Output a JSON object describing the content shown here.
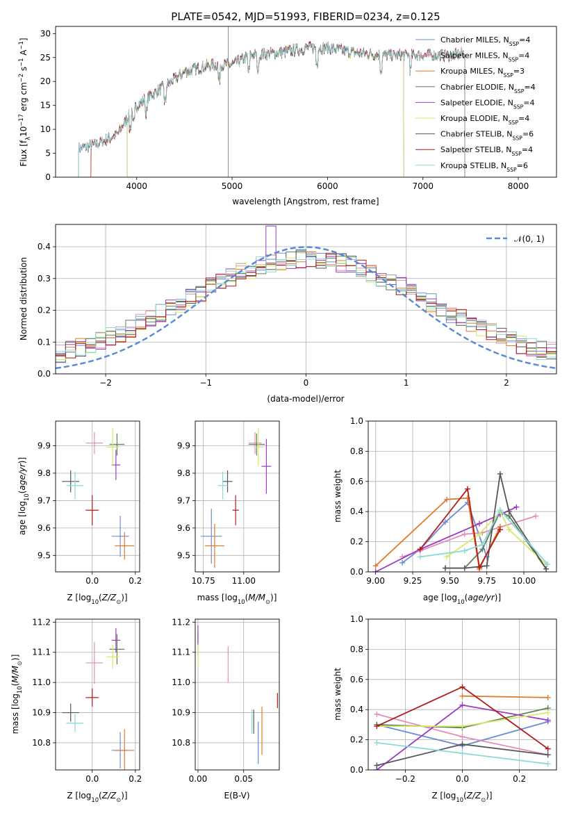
{
  "colors": {
    "Chabrier MILES": "#6b8bd6",
    "Salpeter MILES": "#e88ab8",
    "Kroupa MILES": "#e07b2a",
    "Chabrier ELODIE": "#5e7f5e",
    "Salpeter ELODIE": "#9a3cc0",
    "Kroupa ELODIE": "#d8e86a",
    "Chabrier STELIB": "#555555",
    "Salpeter STELIB": "#b01c1c",
    "Kroupa STELIB": "#8ad8d8",
    "gauss": "#5a8ad6",
    "grid": "#b0b0b0"
  },
  "chart_data": [
    {
      "type": "line",
      "title": "PLATE=0542, MJD=51993, FIBERID=0234, z=0.125",
      "xlabel": "wavelength [Angstrom, rest frame]",
      "ylabel": "Flux [f_λ 10^-17 erg cm^-2 s^-1 A^-1]",
      "xlim": [
        3150,
        8400
      ],
      "ylim": [
        0,
        31.5
      ],
      "xticks": [
        "4000",
        "5000",
        "6000",
        "7000",
        "8000"
      ],
      "yticks": [
        "0",
        "5",
        "10",
        "15",
        "20",
        "25",
        "30"
      ],
      "grid": false,
      "legend": "upper-right",
      "observed_range": [
        3390,
        7470
      ],
      "continuum": [
        [
          3400,
          6.0
        ],
        [
          3600,
          7.0
        ],
        [
          3800,
          9.0
        ],
        [
          3950,
          14.0
        ],
        [
          4100,
          16.5
        ],
        [
          4300,
          19.0
        ],
        [
          4500,
          22.0
        ],
        [
          4800,
          23.5
        ],
        [
          5000,
          23.5
        ],
        [
          5200,
          25.5
        ],
        [
          5500,
          26.0
        ],
        [
          5800,
          27.0
        ],
        [
          6000,
          27.0
        ],
        [
          6300,
          26.0
        ],
        [
          6600,
          25.5
        ],
        [
          7000,
          25.5
        ],
        [
          7300,
          25.5
        ],
        [
          7450,
          26.0
        ]
      ],
      "series": [
        {
          "name": "Chabrier MILES",
          "nssp": "4",
          "range": [
            3390,
            7440
          ]
        },
        {
          "name": "Salpeter MILES",
          "nssp": "4",
          "range": [
            3390,
            7440
          ]
        },
        {
          "name": "Kroupa MILES",
          "nssp": "3",
          "range": [
            3520,
            7440
          ]
        },
        {
          "name": "Chabrier ELODIE",
          "nssp": "4",
          "range": [
            3900,
            6800
          ]
        },
        {
          "name": "Salpeter ELODIE",
          "nssp": "4",
          "range": [
            3900,
            6800
          ]
        },
        {
          "name": "Kroupa ELODIE",
          "nssp": "4",
          "range": [
            3900,
            6800
          ]
        },
        {
          "name": "Chabrier STELIB",
          "nssp": "6",
          "range": [
            3390,
            7440
          ]
        },
        {
          "name": "Salpeter STELIB",
          "nssp": "4",
          "range": [
            3520,
            7440
          ]
        },
        {
          "name": "Kroupa STELIB",
          "nssp": "6",
          "range": [
            3390,
            7440
          ]
        }
      ]
    },
    {
      "type": "histogram",
      "xlabel": "(data-model)/error",
      "ylabel": "Normed distribution",
      "xlim": [
        -2.5,
        2.5
      ],
      "ylim": [
        0,
        0.47
      ],
      "xticks": [
        "−2",
        "−1",
        "0",
        "1",
        "2"
      ],
      "yticks": [
        "0.0",
        "0.1",
        "0.2",
        "0.3",
        "0.4"
      ],
      "grid": true,
      "legend": "upper-right",
      "legend_label": "𝒩(0, 1)",
      "bin_edges": [
        -2.5,
        2.5
      ],
      "bin_width": 0.1,
      "peak_spike": {
        "x": -0.35,
        "y": 0.465
      }
    },
    {
      "type": "scatter",
      "xlabel": "Z [log10(Z/Z⊙)]",
      "ylabel": "age  [log10(age/yr)]",
      "xlim": [
        -0.17,
        0.22
      ],
      "ylim": [
        9.44,
        9.99
      ],
      "xticks": [
        "0.0",
        "0.2"
      ],
      "yticks": [
        "9.5",
        "9.6",
        "9.7",
        "9.8",
        "9.9"
      ],
      "grid": true,
      "points": [
        {
          "series": "Chabrier MILES",
          "x": 0.13,
          "y": 9.57,
          "xerr": 0.04,
          "yerr": 0.075
        },
        {
          "series": "Salpeter MILES",
          "x": 0.01,
          "y": 9.91,
          "xerr": 0.04,
          "yerr": 0.04
        },
        {
          "series": "Kroupa MILES",
          "x": 0.15,
          "y": 9.535,
          "xerr": 0.045,
          "yerr": 0.05
        },
        {
          "series": "Chabrier ELODIE",
          "x": 0.115,
          "y": 9.905,
          "xerr": 0.035,
          "yerr": 0.04
        },
        {
          "series": "Salpeter ELODIE",
          "x": 0.11,
          "y": 9.83,
          "xerr": 0.02,
          "yerr": 0.055
        },
        {
          "series": "Kroupa ELODIE",
          "x": 0.095,
          "y": 9.895,
          "xerr": 0.03,
          "yerr": 0.07
        },
        {
          "series": "Chabrier STELIB",
          "x": -0.1,
          "y": 9.77,
          "xerr": 0.04,
          "yerr": 0.04
        },
        {
          "series": "Salpeter STELIB",
          "x": 0.0,
          "y": 9.665,
          "xerr": 0.03,
          "yerr": 0.055
        },
        {
          "series": "Kroupa STELIB",
          "x": -0.08,
          "y": 9.755,
          "xerr": 0.04,
          "yerr": 0.05
        }
      ]
    },
    {
      "type": "scatter",
      "xlabel": "mass [log10(M/M⊙)]",
      "xlim": [
        10.7,
        11.22
      ],
      "ylim": [
        9.44,
        9.99
      ],
      "xticks": [
        "10.75",
        "11.00"
      ],
      "yticks": [
        "9.5",
        "9.6",
        "9.7",
        "9.8",
        "9.9"
      ],
      "grid": true,
      "points": [
        {
          "series": "Chabrier MILES",
          "x": 10.8,
          "y": 9.57,
          "xerr": 0.065,
          "yerr": 0.1
        },
        {
          "series": "Salpeter MILES",
          "x": 11.07,
          "y": 9.91,
          "xerr": 0.04,
          "yerr": 0.04
        },
        {
          "series": "Kroupa MILES",
          "x": 10.82,
          "y": 9.535,
          "xerr": 0.06,
          "yerr": 0.08
        },
        {
          "series": "Chabrier ELODIE",
          "x": 11.08,
          "y": 9.905,
          "xerr": 0.05,
          "yerr": 0.04
        },
        {
          "series": "Salpeter ELODIE",
          "x": 11.14,
          "y": 9.825,
          "xerr": 0.03,
          "yerr": 0.1
        },
        {
          "series": "Kroupa ELODIE",
          "x": 11.09,
          "y": 9.895,
          "xerr": 0.03,
          "yerr": 0.07
        },
        {
          "series": "Chabrier STELIB",
          "x": 10.9,
          "y": 9.77,
          "xerr": 0.03,
          "yerr": 0.04
        },
        {
          "series": "Salpeter STELIB",
          "x": 10.95,
          "y": 9.665,
          "xerr": 0.02,
          "yerr": 0.055
        },
        {
          "series": "Kroupa STELIB",
          "x": 10.87,
          "y": 9.755,
          "xerr": 0.03,
          "yerr": 0.05
        }
      ]
    },
    {
      "type": "line",
      "xlabel": "age  [log10(age/yr)]",
      "ylabel": "mass weight",
      "xlim": [
        8.95,
        10.22
      ],
      "ylim": [
        0,
        1.0
      ],
      "xticks": [
        "9.00",
        "9.25",
        "9.50",
        "9.75",
        "10.00"
      ],
      "yticks": [
        "0.0",
        "0.2",
        "0.4",
        "0.6",
        "0.8",
        "1.0"
      ],
      "grid": true,
      "series": [
        {
          "name": "Chabrier MILES",
          "x": [
            9.18,
            9.3,
            9.47,
            9.62,
            9.75
          ],
          "y": [
            0.06,
            0.15,
            0.33,
            0.46,
            0.1
          ]
        },
        {
          "name": "Salpeter MILES",
          "x": [
            9.18,
            9.3,
            9.6,
            9.72,
            10.08
          ],
          "y": [
            0.1,
            0.14,
            0.25,
            0.26,
            0.37
          ]
        },
        {
          "name": "Kroupa MILES",
          "x": [
            9.0,
            9.48,
            9.62,
            9.7,
            9.84
          ],
          "y": [
            0.04,
            0.48,
            0.49,
            0.02,
            0.3
          ]
        },
        {
          "name": "Chabrier ELODIE",
          "x": [
            9.47,
            9.6,
            9.72,
            9.84,
            9.9,
            10.15
          ],
          "y": [
            0.025,
            0.025,
            0.15,
            0.4,
            0.37,
            0.02
          ]
        },
        {
          "name": "Salpeter ELODIE",
          "x": [
            9.0,
            9.3,
            9.7,
            9.84,
            9.95
          ],
          "y": [
            0.0,
            0.15,
            0.32,
            0.38,
            0.43
          ]
        },
        {
          "name": "Kroupa ELODIE",
          "x": [
            9.48,
            9.7,
            9.84,
            9.9,
            10.15
          ],
          "y": [
            0.1,
            0.25,
            0.4,
            0.28,
            0.05
          ]
        },
        {
          "name": "Chabrier STELIB",
          "x": [
            9.47,
            9.6,
            9.75,
            9.84,
            9.9,
            10.15
          ],
          "y": [
            0.025,
            0.025,
            0.04,
            0.65,
            0.4,
            0.02
          ]
        },
        {
          "name": "Salpeter STELIB",
          "x": [
            9.3,
            9.62,
            9.7,
            9.84
          ],
          "y": [
            0.15,
            0.55,
            0.03,
            0.28
          ]
        },
        {
          "name": "Kroupa STELIB",
          "x": [
            9.3,
            9.6,
            9.72,
            9.84,
            10.16
          ],
          "y": [
            0.1,
            0.14,
            0.18,
            0.41,
            0.05
          ]
        }
      ]
    },
    {
      "type": "scatter",
      "xlabel": "Z [log10(Z/Z⊙)]",
      "ylabel": "mass [log10(M/M⊙)]",
      "xlim": [
        -0.17,
        0.22
      ],
      "ylim": [
        10.71,
        11.21
      ],
      "xticks": [
        "0.0",
        "0.2"
      ],
      "yticks": [
        "10.8",
        "10.9",
        "11.0",
        "11.1",
        "11.2"
      ],
      "grid": true,
      "points": [
        {
          "series": "Chabrier MILES",
          "x": 0.13,
          "y": 10.775,
          "xerr": 0.04,
          "yerr": 0.06
        },
        {
          "series": "Salpeter MILES",
          "x": 0.01,
          "y": 11.065,
          "xerr": 0.04,
          "yerr": 0.07
        },
        {
          "series": "Kroupa MILES",
          "x": 0.15,
          "y": 10.775,
          "xerr": 0.045,
          "yerr": 0.07
        },
        {
          "series": "Chabrier ELODIE",
          "x": 0.115,
          "y": 11.11,
          "xerr": 0.035,
          "yerr": 0.05
        },
        {
          "series": "Salpeter ELODIE",
          "x": 0.11,
          "y": 11.14,
          "xerr": 0.02,
          "yerr": 0.04
        },
        {
          "series": "Kroupa ELODIE",
          "x": 0.095,
          "y": 11.085,
          "xerr": 0.03,
          "yerr": 0.04
        },
        {
          "series": "Chabrier STELIB",
          "x": -0.1,
          "y": 10.9,
          "xerr": 0.04,
          "yerr": 0.03
        },
        {
          "series": "Salpeter STELIB",
          "x": 0.0,
          "y": 10.95,
          "xerr": 0.03,
          "yerr": 0.03
        },
        {
          "series": "Kroupa STELIB",
          "x": -0.08,
          "y": 10.865,
          "xerr": 0.04,
          "yerr": 0.03
        }
      ]
    },
    {
      "type": "scatter",
      "xlabel": "E(B-V)",
      "xlim": [
        -0.003,
        0.089
      ],
      "ylim": [
        10.71,
        11.21
      ],
      "xticks": [
        "0.00",
        "0.05"
      ],
      "yticks": [
        "10.8",
        "10.9",
        "11.0",
        "11.1",
        "11.2"
      ],
      "grid": true,
      "points": [
        {
          "series": "Chabrier MILES",
          "x": 0.066,
          "y": 10.8,
          "xerr": 0,
          "yerr": 0.07
        },
        {
          "series": "Salpeter MILES",
          "x": 0.033,
          "y": 11.06,
          "xerr": 0,
          "yerr": 0.06
        },
        {
          "series": "Kroupa MILES",
          "x": 0.07,
          "y": 10.84,
          "xerr": 0,
          "yerr": 0.08
        },
        {
          "series": "Chabrier ELODIE",
          "x": 0.0,
          "y": 11.13,
          "xerr": 0,
          "yerr": 0.04
        },
        {
          "series": "Salpeter ELODIE",
          "x": 0.0,
          "y": 11.16,
          "xerr": 0,
          "yerr": 0.03
        },
        {
          "series": "Kroupa ELODIE",
          "x": 0.0,
          "y": 11.085,
          "xerr": 0,
          "yerr": 0.04
        },
        {
          "series": "Chabrier STELIB",
          "x": 0.061,
          "y": 10.87,
          "xerr": 0,
          "yerr": 0.04
        },
        {
          "series": "Salpeter STELIB",
          "x": 0.087,
          "y": 10.94,
          "xerr": 0,
          "yerr": 0.025
        },
        {
          "series": "Kroupa STELIB",
          "x": 0.059,
          "y": 10.87,
          "xerr": 0,
          "yerr": 0.04
        }
      ]
    },
    {
      "type": "line",
      "xlabel": "Z [log10(Z/Z⊙)]",
      "ylabel": "mass weight",
      "xlim": [
        -0.33,
        0.33
      ],
      "ylim": [
        0,
        1.0
      ],
      "xticks": [
        "−0.2",
        "0.0",
        "0.2"
      ],
      "yticks": [
        "0.0",
        "0.2",
        "0.4",
        "0.6",
        "0.8",
        "1.0"
      ],
      "grid": true,
      "series": [
        {
          "name": "Chabrier MILES",
          "x": [
            -0.3,
            0.0,
            0.3
          ],
          "y": [
            0.3,
            0.16,
            0.32
          ]
        },
        {
          "name": "Salpeter MILES",
          "x": [
            -0.3,
            0.0,
            0.3
          ],
          "y": [
            0.37,
            0.22,
            0.1
          ]
        },
        {
          "name": "Kroupa MILES",
          "x": [
            0.0,
            0.3
          ],
          "y": [
            0.49,
            0.48
          ]
        },
        {
          "name": "Chabrier ELODIE",
          "x": [
            -0.3,
            0.0,
            0.3
          ],
          "y": [
            0.3,
            0.28,
            0.41
          ]
        },
        {
          "name": "Salpeter ELODIE",
          "x": [
            -0.3,
            0.0,
            0.3
          ],
          "y": [
            0.0,
            0.43,
            0.33
          ]
        },
        {
          "name": "Kroupa ELODIE",
          "x": [
            -0.3,
            0.0,
            0.3
          ],
          "y": [
            0.29,
            0.29,
            0.38
          ]
        },
        {
          "name": "Chabrier STELIB",
          "x": [
            -0.3,
            0.0,
            0.3
          ],
          "y": [
            0.03,
            0.17,
            0.1
          ]
        },
        {
          "name": "Salpeter STELIB",
          "x": [
            -0.3,
            0.0,
            0.3
          ],
          "y": [
            0.29,
            0.55,
            0.14
          ]
        },
        {
          "name": "Kroupa STELIB",
          "x": [
            -0.3,
            0.0,
            0.3
          ],
          "y": [
            0.18,
            0.11,
            0.04
          ]
        }
      ]
    }
  ]
}
